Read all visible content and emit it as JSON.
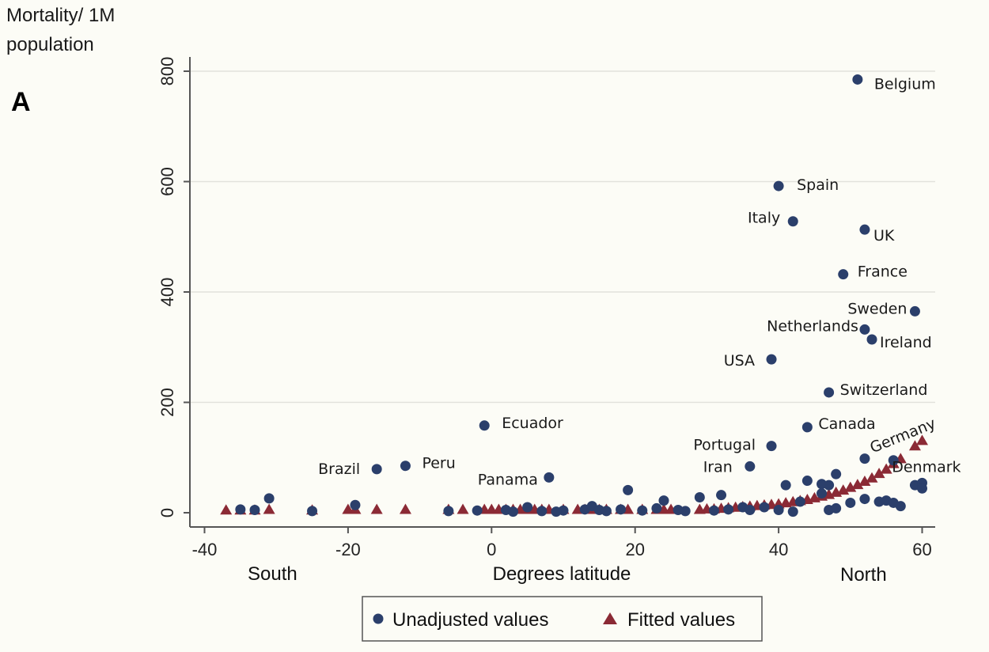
{
  "chart_data": {
    "type": "scatter",
    "panel_label": "A",
    "ylabel_lines": [
      "Mortality/ 1M",
      "population"
    ],
    "xlabel": "Degrees latitude",
    "x_end_labels": {
      "left": "South",
      "right": "North"
    },
    "xlim": [
      -42,
      62
    ],
    "ylim": [
      -30,
      850
    ],
    "xticks": [
      -40,
      -20,
      0,
      20,
      40,
      60
    ],
    "xtick_labels": [
      "-40",
      "-20",
      "0",
      "20",
      "40",
      "60"
    ],
    "yticks": [
      0,
      200,
      400,
      600,
      800
    ],
    "ytick_labels": [
      "0",
      "200",
      "400",
      "600",
      "800"
    ],
    "grid": "horizontal",
    "legend_position": "bottom",
    "colors": {
      "unadjusted": "#2b3f6b",
      "fitted": "#8b2a35",
      "grid": "#e2e2dc",
      "axis": "#555555"
    },
    "series": [
      {
        "name": "Unadjusted values",
        "marker": "circle",
        "points": [
          {
            "x": 51,
            "y": 785,
            "label": "Belgium"
          },
          {
            "x": 40,
            "y": 592,
            "label": "Spain"
          },
          {
            "x": 42,
            "y": 528,
            "label": "Italy"
          },
          {
            "x": 52,
            "y": 513,
            "label": "UK"
          },
          {
            "x": 49,
            "y": 432,
            "label": "France"
          },
          {
            "x": 59,
            "y": 365,
            "label": "Sweden"
          },
          {
            "x": 52,
            "y": 332,
            "label": "Netherlands"
          },
          {
            "x": 53,
            "y": 314,
            "label": "Ireland"
          },
          {
            "x": 39,
            "y": 278,
            "label": "USA"
          },
          {
            "x": 47,
            "y": 218,
            "label": "Switzerland"
          },
          {
            "x": -1,
            "y": 158,
            "label": "Ecuador"
          },
          {
            "x": 44,
            "y": 155,
            "label": "Canada"
          },
          {
            "x": 39,
            "y": 121,
            "label": "Portugal"
          },
          {
            "x": 52,
            "y": 98,
            "label": "Germany"
          },
          {
            "x": 56,
            "y": 95,
            "label": "Denmark"
          },
          {
            "x": 36,
            "y": 84,
            "label": "Iran"
          },
          {
            "x": -12,
            "y": 85,
            "label": "Peru"
          },
          {
            "x": -16,
            "y": 79,
            "label": "Brazil"
          },
          {
            "x": 8,
            "y": 64,
            "label": "Panama"
          },
          {
            "x": -31,
            "y": 26
          },
          {
            "x": -19,
            "y": 14
          },
          {
            "x": 19,
            "y": 41
          },
          {
            "x": 24,
            "y": 22
          },
          {
            "x": 29,
            "y": 28
          },
          {
            "x": 32,
            "y": 32
          },
          {
            "x": 41,
            "y": 50
          },
          {
            "x": 44,
            "y": 58
          },
          {
            "x": 46,
            "y": 52
          },
          {
            "x": 47,
            "y": 50
          },
          {
            "x": 48,
            "y": 70
          },
          {
            "x": 50,
            "y": 18
          },
          {
            "x": 52,
            "y": 25
          },
          {
            "x": 54,
            "y": 20
          },
          {
            "x": 55,
            "y": 22
          },
          {
            "x": 56,
            "y": 18
          },
          {
            "x": 57,
            "y": 12
          },
          {
            "x": 59,
            "y": 50
          },
          {
            "x": 60,
            "y": 54
          },
          {
            "x": 60,
            "y": 44
          },
          {
            "x": 43,
            "y": 20
          },
          {
            "x": 46,
            "y": 35
          },
          {
            "x": 47,
            "y": 5
          },
          {
            "x": 48,
            "y": 8
          },
          {
            "x": 42,
            "y": 2
          },
          {
            "x": 40,
            "y": 5
          },
          {
            "x": 38,
            "y": 10
          },
          {
            "x": -35,
            "y": 6
          },
          {
            "x": -33,
            "y": 5
          },
          {
            "x": -25,
            "y": 3
          },
          {
            "x": -6,
            "y": 3
          },
          {
            "x": -2,
            "y": 4
          },
          {
            "x": 2,
            "y": 5
          },
          {
            "x": 5,
            "y": 10
          },
          {
            "x": 7,
            "y": 3
          },
          {
            "x": 10,
            "y": 4
          },
          {
            "x": 13,
            "y": 6
          },
          {
            "x": 14,
            "y": 12
          },
          {
            "x": 15,
            "y": 5
          },
          {
            "x": 18,
            "y": 6
          },
          {
            "x": 21,
            "y": 4
          },
          {
            "x": 23,
            "y": 8
          },
          {
            "x": 27,
            "y": 3
          },
          {
            "x": 31,
            "y": 4
          },
          {
            "x": 33,
            "y": 6
          },
          {
            "x": 35,
            "y": 10
          },
          {
            "x": 36,
            "y": 5
          },
          {
            "x": 3,
            "y": 2
          },
          {
            "x": 9,
            "y": 2
          },
          {
            "x": 16,
            "y": 3
          },
          {
            "x": 26,
            "y": 5
          }
        ]
      },
      {
        "name": "Fitted values",
        "marker": "triangle",
        "points": [
          {
            "x": -37,
            "y": 4
          },
          {
            "x": -35,
            "y": 4
          },
          {
            "x": -33,
            "y": 4
          },
          {
            "x": -31,
            "y": 5
          },
          {
            "x": -25,
            "y": 4
          },
          {
            "x": -20,
            "y": 5
          },
          {
            "x": -19,
            "y": 5
          },
          {
            "x": -16,
            "y": 5
          },
          {
            "x": -12,
            "y": 5
          },
          {
            "x": -6,
            "y": 5
          },
          {
            "x": -4,
            "y": 5
          },
          {
            "x": -1,
            "y": 5
          },
          {
            "x": 0,
            "y": 5
          },
          {
            "x": 1,
            "y": 5
          },
          {
            "x": 2,
            "y": 5
          },
          {
            "x": 3,
            "y": 5
          },
          {
            "x": 4,
            "y": 5
          },
          {
            "x": 5,
            "y": 5
          },
          {
            "x": 6,
            "y": 5
          },
          {
            "x": 7,
            "y": 5
          },
          {
            "x": 8,
            "y": 5
          },
          {
            "x": 10,
            "y": 5
          },
          {
            "x": 12,
            "y": 5
          },
          {
            "x": 13,
            "y": 5
          },
          {
            "x": 14,
            "y": 5
          },
          {
            "x": 15,
            "y": 5
          },
          {
            "x": 16,
            "y": 5
          },
          {
            "x": 18,
            "y": 5
          },
          {
            "x": 19,
            "y": 5
          },
          {
            "x": 21,
            "y": 5
          },
          {
            "x": 23,
            "y": 5
          },
          {
            "x": 24,
            "y": 5
          },
          {
            "x": 25,
            "y": 5
          },
          {
            "x": 29,
            "y": 5
          },
          {
            "x": 30,
            "y": 6
          },
          {
            "x": 31,
            "y": 6
          },
          {
            "x": 32,
            "y": 7
          },
          {
            "x": 33,
            "y": 8
          },
          {
            "x": 34,
            "y": 9
          },
          {
            "x": 35,
            "y": 10
          },
          {
            "x": 36,
            "y": 11
          },
          {
            "x": 37,
            "y": 12
          },
          {
            "x": 38,
            "y": 13
          },
          {
            "x": 39,
            "y": 14
          },
          {
            "x": 40,
            "y": 15
          },
          {
            "x": 41,
            "y": 17
          },
          {
            "x": 42,
            "y": 19
          },
          {
            "x": 43,
            "y": 21
          },
          {
            "x": 44,
            "y": 23
          },
          {
            "x": 45,
            "y": 26
          },
          {
            "x": 46,
            "y": 29
          },
          {
            "x": 47,
            "y": 32
          },
          {
            "x": 48,
            "y": 36
          },
          {
            "x": 49,
            "y": 40
          },
          {
            "x": 50,
            "y": 45
          },
          {
            "x": 51,
            "y": 50
          },
          {
            "x": 52,
            "y": 56
          },
          {
            "x": 53,
            "y": 62
          },
          {
            "x": 54,
            "y": 70
          },
          {
            "x": 55,
            "y": 78
          },
          {
            "x": 56,
            "y": 88
          },
          {
            "x": 57,
            "y": 97
          },
          {
            "x": 59,
            "y": 120
          },
          {
            "x": 60,
            "y": 130
          }
        ]
      }
    ]
  }
}
